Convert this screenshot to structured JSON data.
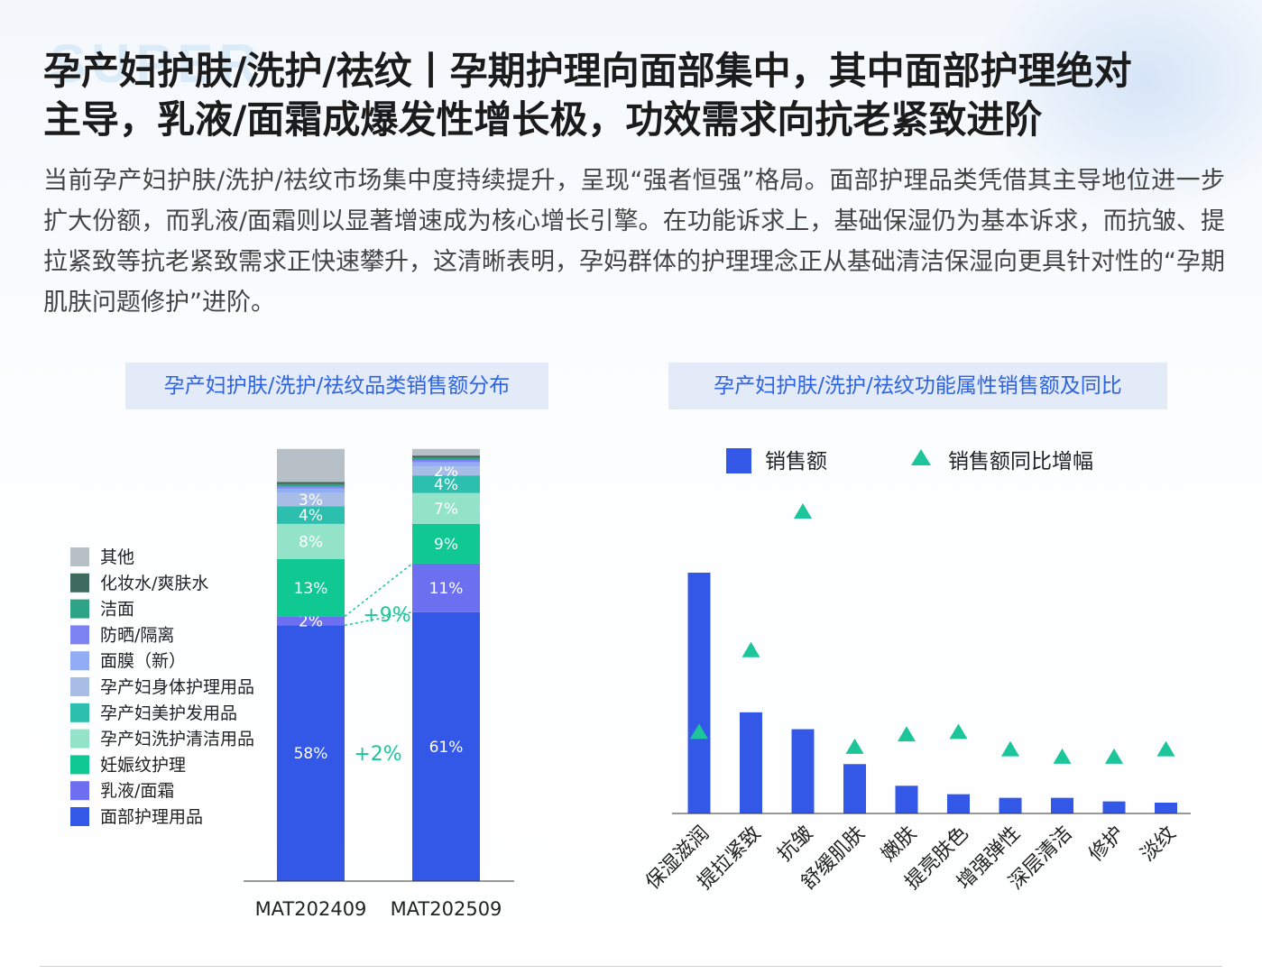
{
  "header": {
    "watermark": "SUPER",
    "title_line1": "孕产妇护肤/洗护/祛纹丨孕期护理向面部集中，其中面部护理绝对",
    "title_line2": "主导，乳液/面霜成爆发性增长极，功效需求向抗老紧致进阶",
    "paragraph": "当前孕产妇护肤/洗护/祛纹市场集中度持续提升，呈现“强者恒强”格局。面部护理品类凭借其主导地位进一步扩大份额，而乳液/面霜则以显著增速成为核心增长引擎。在功能诉求上，基础保湿仍为基本诉求，而抗皱、提拉紧致等抗老紧致需求正快速攀升，这清晰表明，孕妈群体的护理理念正从基础清洁保湿向更具针对性的“孕期肌肤问题修护”进阶。"
  },
  "chart_data": [
    {
      "type": "bar",
      "stacked": true,
      "title": "孕产妇护肤/洗护/祛纹品类销售额分布",
      "categories": [
        "MAT202409",
        "MAT202509"
      ],
      "series": [
        {
          "name": "面部护理用品",
          "color": "#3358e8",
          "values": [
            58,
            61
          ],
          "labels": [
            "58%",
            "61%"
          ]
        },
        {
          "name": "乳液/面霜",
          "color": "#6b6ff0",
          "values": [
            2,
            11
          ],
          "labels": [
            "2%",
            "11%"
          ]
        },
        {
          "name": "妊娠纹护理",
          "color": "#0fc892",
          "values": [
            13,
            9
          ],
          "labels": [
            "13%",
            "9%"
          ]
        },
        {
          "name": "孕产妇洗护清洁用品",
          "color": "#93e3c9",
          "values": [
            8,
            7
          ],
          "labels": [
            "8%",
            "7%"
          ]
        },
        {
          "name": "孕产妇美护发用品",
          "color": "#2dbfae",
          "values": [
            4,
            4
          ],
          "labels": [
            "4%",
            "4%"
          ]
        },
        {
          "name": "孕产妇身体护理用品",
          "color": "#a8bde6",
          "values": [
            3,
            2
          ],
          "labels": [
            "3%",
            "2%"
          ]
        },
        {
          "name": "面膜（新）",
          "color": "#93adf4",
          "values": [
            1,
            1
          ],
          "labels": [
            "",
            ""
          ]
        },
        {
          "name": "防晒/隔离",
          "color": "#7d84f2",
          "values": [
            0.5,
            0.5
          ],
          "labels": [
            "",
            ""
          ]
        },
        {
          "name": "洁面",
          "color": "#2fa387",
          "values": [
            0.5,
            0.5
          ],
          "labels": [
            "",
            ""
          ]
        },
        {
          "name": "化妆水/爽肤水",
          "color": "#3f6a5e",
          "values": [
            0.5,
            0.5
          ],
          "labels": [
            "",
            ""
          ]
        },
        {
          "name": "其他",
          "color": "#b7c0c6",
          "values": [
            7.5,
            1.5
          ],
          "labels": [
            "",
            ""
          ]
        }
      ],
      "annotations": [
        {
          "text": "+9%",
          "between": "乳液/面霜"
        },
        {
          "text": "+2%",
          "between": "面部护理用品"
        }
      ],
      "ylim": [
        0,
        100
      ]
    },
    {
      "type": "bar",
      "title": "孕产妇护肤/洗护/祛纹功能属性销售额及同比",
      "categories": [
        "保湿滋润",
        "提拉紧致",
        "抗皱",
        "舒缓肌肤",
        "嫩肤",
        "提亮肤色",
        "增强弹性",
        "深层清洁",
        "修护",
        "淡纹"
      ],
      "series": [
        {
          "name": "销售额",
          "color": "#3358e8",
          "values": [
            100,
            42,
            35,
            20.5,
            11.5,
            8,
            6.5,
            6.5,
            5,
            4.5
          ]
        },
        {
          "name": "销售额同比增幅",
          "color": "#1cc59a",
          "values": [
            33,
            66,
            122,
            27,
            32,
            33,
            26,
            23,
            23,
            26
          ]
        }
      ],
      "yaxis_visible": false,
      "legend": "top"
    }
  ]
}
